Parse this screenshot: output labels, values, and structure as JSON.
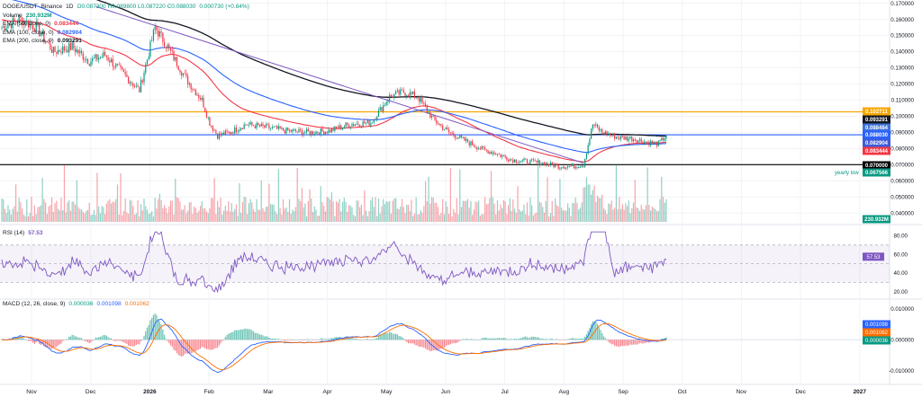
{
  "chart_data": {
    "type": "candlestick",
    "legend": {
      "symbol": "DOGE/USDT",
      "exchange": "Binance",
      "interval": "1D",
      "ohlc_text": "O0.087300 H0.089800 L0.087220 C0.088030",
      "change_text": "0.000730 (+0.84%)",
      "volume_label": "Volume",
      "volume_value": "230.932M",
      "ema50_label": "EMA (50, close, 0)",
      "ema50_value": "0.083444",
      "ema100_label": "EMA (100, close, 0)",
      "ema100_value": "0.082904",
      "ema200_label": "EMA (200, close, 0)",
      "ema200_value": "0.093291"
    },
    "price_axis": {
      "ticks": [
        "0.170000",
        "0.160000",
        "0.150000",
        "0.140000",
        "0.130000",
        "0.120000",
        "0.110000",
        "0.100000",
        "0.090000",
        "0.080000",
        "0.070000",
        "0.060000",
        "0.050000",
        "0.040000"
      ],
      "range": [
        0.034,
        0.172
      ]
    },
    "price_tags": [
      {
        "value": "0.102711",
        "color": "#f7a600"
      },
      {
        "value": "0.093291",
        "color": "#131722"
      },
      {
        "value": "0.088484",
        "color": "#3d72d9"
      },
      {
        "value": "0.088030",
        "color": "#2962ff"
      },
      {
        "value": "0.082904",
        "color": "#3d5bd9"
      },
      {
        "value": "0.083444",
        "color": "#f23645"
      },
      {
        "value": "0.070000",
        "color": "#000000"
      },
      {
        "value": "0.067566",
        "color": "#089981"
      },
      {
        "value": "230.932M",
        "color": "#089981"
      }
    ],
    "horizontal_levels": [
      {
        "price": 0.102711,
        "color": "#f7a600"
      },
      {
        "price": 0.088484,
        "color": "#2962ff"
      },
      {
        "price": 0.07,
        "color": "#000000"
      }
    ],
    "annotation": "yearly low",
    "time_axis": [
      "Nov",
      "Dec",
      "2026",
      "Feb",
      "Mar",
      "Apr",
      "May",
      "Jun",
      "Jul",
      "Aug",
      "Sep",
      "Oct",
      "Nov",
      "Dec",
      "2027"
    ],
    "rsi": {
      "label": "RSI (14)",
      "value": "57.53",
      "ticks": [
        "80.00",
        "60.00",
        "40.00",
        "20.00"
      ],
      "range": [
        15,
        90
      ],
      "bands": [
        70,
        50,
        30
      ]
    },
    "macd": {
      "label": "MACD (12, 26, close, 9)",
      "hist_value": "0.000036",
      "macd_value": "0.001098",
      "signal_value": "0.001062",
      "ticks": [
        "0.010000",
        "0.000000",
        "-0.010000"
      ],
      "range": [
        -0.0135,
        0.0125
      ]
    },
    "anchors": [
      [
        0,
        0.155
      ],
      [
        12,
        0.16
      ],
      [
        22,
        0.155
      ],
      [
        33,
        0.14
      ],
      [
        45,
        0.143
      ],
      [
        56,
        0.134
      ],
      [
        66,
        0.138
      ],
      [
        76,
        0.128
      ],
      [
        88,
        0.116
      ],
      [
        98,
        0.155
      ],
      [
        106,
        0.143
      ],
      [
        118,
        0.123
      ],
      [
        128,
        0.11
      ],
      [
        133,
        0.096
      ],
      [
        138,
        0.088
      ],
      [
        146,
        0.09
      ],
      [
        156,
        0.095
      ],
      [
        170,
        0.093
      ],
      [
        182,
        0.091
      ],
      [
        196,
        0.09
      ],
      [
        210,
        0.091
      ],
      [
        222,
        0.095
      ],
      [
        236,
        0.096
      ],
      [
        248,
        0.112
      ],
      [
        257,
        0.115
      ],
      [
        266,
        0.112
      ],
      [
        276,
        0.098
      ],
      [
        286,
        0.09
      ],
      [
        296,
        0.085
      ],
      [
        306,
        0.08
      ],
      [
        316,
        0.077
      ],
      [
        326,
        0.073
      ],
      [
        336,
        0.072
      ],
      [
        346,
        0.071
      ],
      [
        356,
        0.069
      ],
      [
        366,
        0.069
      ],
      [
        372,
        0.07
      ],
      [
        378,
        0.095
      ],
      [
        384,
        0.09
      ],
      [
        394,
        0.087
      ],
      [
        404,
        0.086
      ],
      [
        412,
        0.084
      ],
      [
        420,
        0.083
      ],
      [
        425,
        0.088
      ]
    ]
  }
}
